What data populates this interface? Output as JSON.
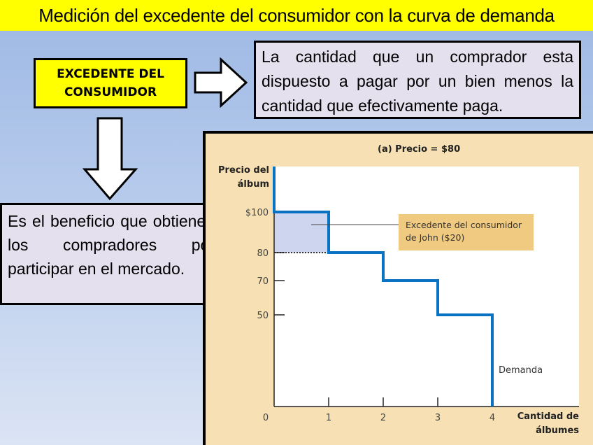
{
  "title": "Medición del excedente del consumidor con la curva de demanda",
  "concept_box": {
    "label": "EXCEDENTE DEL CONSUMIDOR"
  },
  "definition_box": {
    "text": "La cantidad que un comprador esta dispuesto a pagar por un bien menos la cantidad que efectivamente paga."
  },
  "benefit_box": {
    "text": "Es el beneficio que obtienen los compradores por participar en el mercado."
  },
  "icons": {
    "right_arrow": "block-arrow-right",
    "down_arrow": "block-arrow-down"
  },
  "colors": {
    "title_bg": "#ffff00",
    "demand_line": "#0a72c2",
    "surplus_fill": "#cdd6ee",
    "callout_bg": "#f0ca80",
    "panel_bg": "#f6e0b4"
  },
  "chart_data": {
    "type": "line",
    "step": true,
    "title": "(a) Precio = $80",
    "ylabel": "Precio del álbum",
    "xlabel": "Cantidad de álbumes",
    "x_ticks": [
      "0",
      "1",
      "2",
      "3",
      "4"
    ],
    "y_ticks": [
      {
        "value": 100,
        "label": "$100"
      },
      {
        "value": 80,
        "label": "80"
      },
      {
        "value": 70,
        "label": "70"
      },
      {
        "value": 50,
        "label": "50"
      }
    ],
    "series": [
      {
        "name": "Demanda",
        "points": [
          [
            0,
            100
          ],
          [
            1,
            100
          ],
          [
            1,
            80
          ],
          [
            2,
            80
          ],
          [
            2,
            70
          ],
          [
            3,
            70
          ],
          [
            3,
            50
          ],
          [
            4,
            50
          ],
          [
            4,
            0
          ]
        ]
      }
    ],
    "price": 80,
    "shaded_region": {
      "x": [
        0,
        1
      ],
      "y": [
        80,
        100
      ]
    },
    "annotation": "Excedente del consumidor de John ($20)",
    "grid": false
  }
}
